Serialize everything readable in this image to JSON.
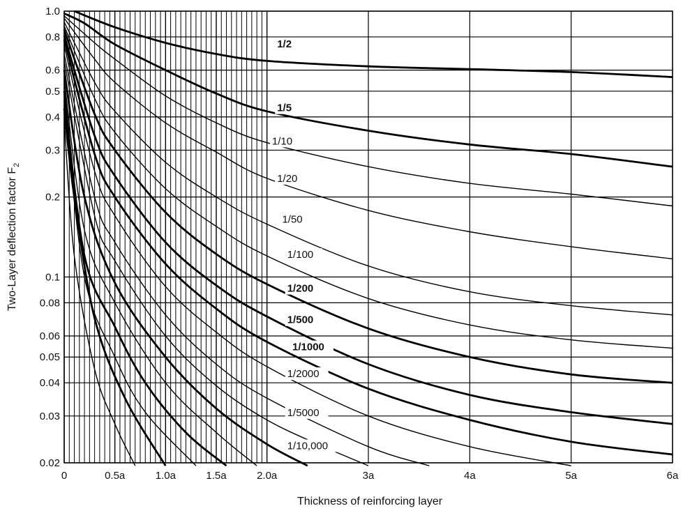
{
  "chart_data": {
    "type": "line",
    "title": "",
    "xlabel": "Thickness of reinforcing layer",
    "ylabel": "Two-Layer deflection factor F",
    "ylabel_subscript": "2",
    "y_scale": "log",
    "xlim": [
      0,
      6
    ],
    "ylim": [
      0.02,
      1.0
    ],
    "x_tick_values": [
      0,
      0.5,
      1.0,
      1.5,
      2.0,
      3,
      4,
      5,
      6
    ],
    "x_tick_labels": [
      "0",
      "0.5a",
      "1.0a",
      "1.5a",
      "2.0a",
      "3a",
      "4a",
      "5a",
      "6a"
    ],
    "y_tick_values": [
      1.0,
      0.8,
      0.6,
      0.5,
      0.4,
      0.3,
      0.2,
      0.1,
      0.08,
      0.06,
      0.05,
      0.04,
      0.03,
      0.02
    ],
    "y_tick_labels": [
      "1.0",
      "0.8",
      "0.6",
      "0.5",
      "0.4",
      "0.3",
      "0.2",
      "0.1",
      "0.08",
      "0.06",
      "0.05",
      "0.04",
      "0.03",
      "0.02"
    ],
    "grid": true,
    "series": [
      {
        "name": "1/2",
        "bold": true,
        "label_at": [
          2.1,
          0.73
        ],
        "points": [
          [
            0.1,
            1.0
          ],
          [
            0.5,
            0.87
          ],
          [
            1.0,
            0.76
          ],
          [
            1.5,
            0.69
          ],
          [
            2.0,
            0.65
          ],
          [
            3.0,
            0.62
          ],
          [
            4.0,
            0.605
          ],
          [
            5.0,
            0.59
          ],
          [
            6.0,
            0.565
          ]
        ]
      },
      {
        "name": "1/5",
        "bold": true,
        "label_at": [
          2.1,
          0.42
        ],
        "points": [
          [
            0.0,
            0.98
          ],
          [
            0.2,
            0.9
          ],
          [
            0.5,
            0.75
          ],
          [
            1.0,
            0.6
          ],
          [
            1.5,
            0.49
          ],
          [
            2.0,
            0.42
          ],
          [
            3.0,
            0.355
          ],
          [
            4.0,
            0.315
          ],
          [
            5.0,
            0.29
          ],
          [
            6.0,
            0.26
          ]
        ]
      },
      {
        "name": "1/10",
        "bold": false,
        "label_at": [
          2.05,
          0.315
        ],
        "points": [
          [
            0.0,
            0.96
          ],
          [
            0.3,
            0.76
          ],
          [
            0.5,
            0.66
          ],
          [
            1.0,
            0.48
          ],
          [
            1.5,
            0.38
          ],
          [
            2.0,
            0.32
          ],
          [
            3.0,
            0.26
          ],
          [
            4.0,
            0.225
          ],
          [
            5.0,
            0.205
          ],
          [
            6.0,
            0.185
          ]
        ]
      },
      {
        "name": "1/20",
        "bold": false,
        "label_at": [
          2.1,
          0.228
        ],
        "points": [
          [
            0.0,
            0.94
          ],
          [
            0.3,
            0.66
          ],
          [
            0.5,
            0.54
          ],
          [
            1.0,
            0.38
          ],
          [
            1.5,
            0.295
          ],
          [
            2.0,
            0.235
          ],
          [
            3.0,
            0.178
          ],
          [
            4.0,
            0.148
          ],
          [
            5.0,
            0.13
          ],
          [
            6.0,
            0.117
          ]
        ]
      },
      {
        "name": "1/50",
        "bold": false,
        "label_at": [
          2.15,
          0.16
        ],
        "points": [
          [
            0.0,
            0.91
          ],
          [
            0.3,
            0.54
          ],
          [
            0.5,
            0.42
          ],
          [
            1.0,
            0.27
          ],
          [
            1.5,
            0.2
          ],
          [
            2.0,
            0.158
          ],
          [
            3.0,
            0.11
          ],
          [
            4.0,
            0.088
          ],
          [
            5.0,
            0.078
          ],
          [
            6.0,
            0.072
          ]
        ]
      },
      {
        "name": "1/100",
        "bold": false,
        "label_at": [
          2.2,
          0.118
        ],
        "points": [
          [
            0.0,
            0.88
          ],
          [
            0.3,
            0.47
          ],
          [
            0.5,
            0.35
          ],
          [
            1.0,
            0.215
          ],
          [
            1.5,
            0.155
          ],
          [
            2.0,
            0.12
          ],
          [
            3.0,
            0.083
          ],
          [
            4.0,
            0.066
          ],
          [
            5.0,
            0.058
          ],
          [
            6.0,
            0.054
          ]
        ]
      },
      {
        "name": "1/200",
        "bold": true,
        "label_at": [
          2.2,
          0.088
        ],
        "points": [
          [
            0.0,
            0.85
          ],
          [
            0.3,
            0.41
          ],
          [
            0.5,
            0.3
          ],
          [
            1.0,
            0.175
          ],
          [
            1.5,
            0.122
          ],
          [
            2.0,
            0.094
          ],
          [
            3.0,
            0.064
          ],
          [
            4.0,
            0.05
          ],
          [
            5.0,
            0.043
          ],
          [
            6.0,
            0.04
          ]
        ]
      },
      {
        "name": "1/500",
        "bold": true,
        "label_at": [
          2.2,
          0.067
        ],
        "points": [
          [
            0.0,
            0.81
          ],
          [
            0.3,
            0.34
          ],
          [
            0.5,
            0.24
          ],
          [
            1.0,
            0.135
          ],
          [
            1.5,
            0.093
          ],
          [
            2.0,
            0.071
          ],
          [
            3.0,
            0.047
          ],
          [
            4.0,
            0.036
          ],
          [
            5.0,
            0.031
          ],
          [
            6.0,
            0.028
          ]
        ]
      },
      {
        "name": "1/1000",
        "bold": true,
        "label_at": [
          2.25,
          0.053
        ],
        "points": [
          [
            0.0,
            0.78
          ],
          [
            0.3,
            0.29
          ],
          [
            0.5,
            0.2
          ],
          [
            1.0,
            0.112
          ],
          [
            1.5,
            0.076
          ],
          [
            2.0,
            0.057
          ],
          [
            3.0,
            0.038
          ],
          [
            4.0,
            0.029
          ],
          [
            5.0,
            0.024
          ],
          [
            6.0,
            0.0215
          ]
        ]
      },
      {
        "name": "1/2000",
        "bold": false,
        "label_at": [
          2.2,
          0.042
        ],
        "points": [
          [
            0.0,
            0.74
          ],
          [
            0.3,
            0.25
          ],
          [
            0.5,
            0.17
          ],
          [
            1.0,
            0.092
          ],
          [
            1.5,
            0.062
          ],
          [
            2.0,
            0.046
          ],
          [
            3.0,
            0.03
          ],
          [
            4.0,
            0.023
          ],
          [
            5.0,
            0.0195
          ]
        ]
      },
      {
        "name": "1/5000",
        "bold": false,
        "label_at": [
          2.2,
          0.03
        ],
        "points": [
          [
            0.0,
            0.69
          ],
          [
            0.3,
            0.2
          ],
          [
            0.5,
            0.135
          ],
          [
            1.0,
            0.072
          ],
          [
            1.5,
            0.047
          ],
          [
            2.0,
            0.035
          ],
          [
            3.0,
            0.023
          ],
          [
            3.6,
            0.0195
          ]
        ]
      },
      {
        "name": "1/10,000",
        "bold": false,
        "label_at": [
          2.2,
          0.0225
        ],
        "points": [
          [
            0.0,
            0.65
          ],
          [
            0.3,
            0.17
          ],
          [
            0.5,
            0.115
          ],
          [
            1.0,
            0.06
          ],
          [
            1.5,
            0.039
          ],
          [
            2.0,
            0.029
          ],
          [
            2.5,
            0.0235
          ],
          [
            3.0,
            0.0195
          ]
        ]
      },
      {
        "name": "",
        "bold": true,
        "points": [
          [
            0.0,
            0.6
          ],
          [
            0.2,
            0.2
          ],
          [
            0.5,
            0.095
          ],
          [
            1.0,
            0.05
          ],
          [
            1.5,
            0.032
          ],
          [
            2.0,
            0.0235
          ],
          [
            2.4,
            0.0195
          ]
        ]
      },
      {
        "name": "",
        "bold": false,
        "points": [
          [
            0.0,
            0.55
          ],
          [
            0.2,
            0.15
          ],
          [
            0.5,
            0.08
          ],
          [
            1.0,
            0.04
          ],
          [
            1.5,
            0.026
          ],
          [
            1.9,
            0.0195
          ]
        ]
      },
      {
        "name": "",
        "bold": true,
        "points": [
          [
            0.0,
            0.5
          ],
          [
            0.2,
            0.12
          ],
          [
            0.5,
            0.065
          ],
          [
            0.8,
            0.04
          ],
          [
            1.2,
            0.026
          ],
          [
            1.6,
            0.0195
          ]
        ]
      },
      {
        "name": "",
        "bold": false,
        "points": [
          [
            0.0,
            0.46
          ],
          [
            0.2,
            0.1
          ],
          [
            0.5,
            0.05
          ],
          [
            0.8,
            0.031
          ],
          [
            1.3,
            0.0195
          ]
        ]
      },
      {
        "name": "",
        "bold": true,
        "points": [
          [
            0.0,
            0.43
          ],
          [
            0.1,
            0.2
          ],
          [
            0.3,
            0.07
          ],
          [
            0.6,
            0.035
          ],
          [
            1.0,
            0.0195
          ]
        ]
      },
      {
        "name": "",
        "bold": false,
        "points": [
          [
            0.0,
            0.39
          ],
          [
            0.1,
            0.12
          ],
          [
            0.3,
            0.045
          ],
          [
            0.5,
            0.028
          ],
          [
            0.7,
            0.0195
          ]
        ]
      }
    ]
  }
}
